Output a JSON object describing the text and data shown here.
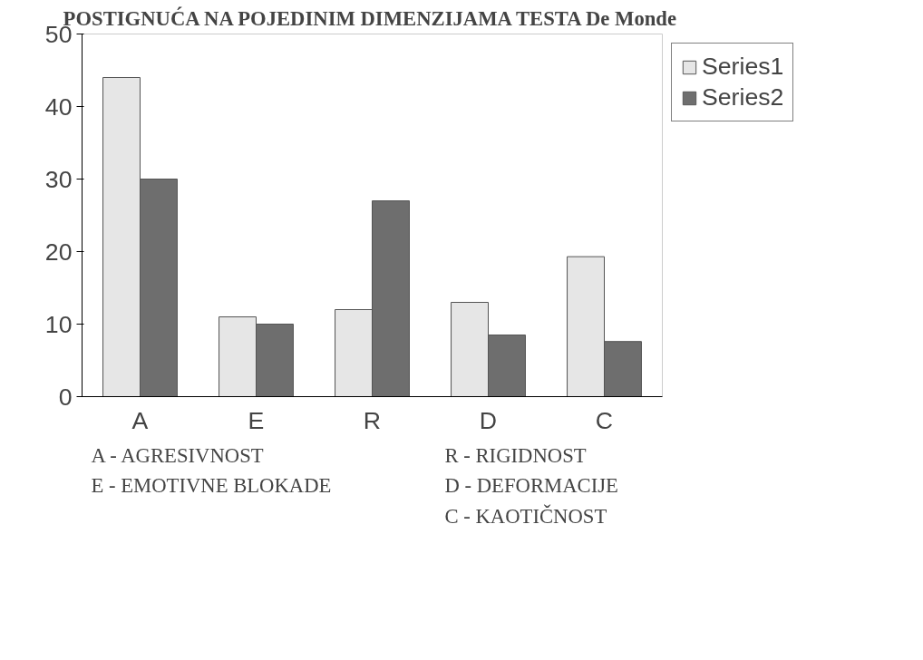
{
  "chart_data": {
    "type": "bar",
    "title": "POSTIGNUĆA NA POJEDINIM DIMENZIJAMA TESTA De Monde",
    "categories": [
      "A",
      "E",
      "R",
      "D",
      "C"
    ],
    "series": [
      {
        "name": "Series1",
        "color": "#e6e6e6",
        "values": [
          44,
          11,
          12,
          13,
          19.3
        ]
      },
      {
        "name": "Series2",
        "color": "#6e6e6e",
        "values": [
          30,
          10,
          27,
          8.5,
          7.6
        ]
      }
    ],
    "ylim": [
      0,
      50
    ],
    "yticks": [
      0,
      10,
      20,
      30,
      40,
      50
    ],
    "grid": false,
    "legend": "right",
    "annotations": [
      "A - AGRESIVNOST",
      "E - EMOTIVNE BLOKADE",
      "R - RIGIDNOST",
      "D - DEFORMACIJE",
      "C - KAOTIČNOST"
    ]
  }
}
